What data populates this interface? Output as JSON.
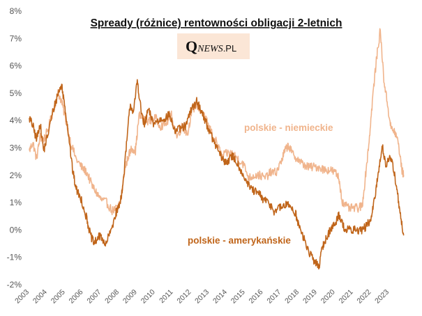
{
  "chart_data": {
    "type": "line",
    "title": "Spready (różnice) rentowności obligacji 2-letnich",
    "logo": {
      "initial": "Q",
      "name": "NEWS",
      "domain": ".PL"
    },
    "xlabel": "",
    "ylabel": "",
    "ylim": [
      -2,
      8
    ],
    "xlim": [
      2003,
      2023.85
    ],
    "y_ticks": [
      "-2%",
      "-1%",
      "0%",
      "1%",
      "2%",
      "3%",
      "4%",
      "5%",
      "6%",
      "7%",
      "8%"
    ],
    "x_ticks": [
      "2003",
      "2004",
      "2005",
      "2006",
      "2007",
      "2008",
      "2009",
      "2010",
      "2011",
      "2012",
      "2013",
      "2014",
      "2015",
      "2016",
      "2017",
      "2018",
      "2019",
      "2020",
      "2021",
      "2022",
      "2023"
    ],
    "grid": false,
    "colors": {
      "niemieckie": "#f0b48c",
      "amerykanskie": "#c0651a",
      "logo_bg": "#fbe6d6"
    },
    "series": [
      {
        "name": "polskie - niemieckie",
        "points": [
          [
            2003.0,
            2.9
          ],
          [
            2003.2,
            3.2
          ],
          [
            2003.4,
            2.6
          ],
          [
            2003.6,
            3.4
          ],
          [
            2003.8,
            3.3
          ],
          [
            2004.0,
            3.6
          ],
          [
            2004.3,
            4.3
          ],
          [
            2004.6,
            5.0
          ],
          [
            2004.8,
            4.7
          ],
          [
            2005.0,
            4.1
          ],
          [
            2005.3,
            3.2
          ],
          [
            2005.6,
            2.6
          ],
          [
            2005.9,
            2.3
          ],
          [
            2006.2,
            2.1
          ],
          [
            2006.5,
            1.6
          ],
          [
            2006.8,
            1.3
          ],
          [
            2007.0,
            1.1
          ],
          [
            2007.3,
            1.0
          ],
          [
            2007.6,
            0.7
          ],
          [
            2007.9,
            0.8
          ],
          [
            2008.1,
            1.1
          ],
          [
            2008.3,
            2.2
          ],
          [
            2008.5,
            2.7
          ],
          [
            2008.7,
            3.0
          ],
          [
            2008.9,
            2.9
          ],
          [
            2009.1,
            4.2
          ],
          [
            2009.4,
            4.0
          ],
          [
            2009.7,
            4.0
          ],
          [
            2010.0,
            4.1
          ],
          [
            2010.3,
            3.8
          ],
          [
            2010.6,
            3.9
          ],
          [
            2010.9,
            4.2
          ],
          [
            2011.2,
            3.4
          ],
          [
            2011.5,
            3.8
          ],
          [
            2011.8,
            3.5
          ],
          [
            2012.0,
            4.3
          ],
          [
            2012.3,
            4.6
          ],
          [
            2012.6,
            4.3
          ],
          [
            2012.9,
            3.9
          ],
          [
            2013.1,
            3.6
          ],
          [
            2013.4,
            3.2
          ],
          [
            2013.7,
            2.7
          ],
          [
            2014.0,
            2.8
          ],
          [
            2014.3,
            2.8
          ],
          [
            2014.6,
            2.6
          ],
          [
            2014.9,
            2.4
          ],
          [
            2015.2,
            1.9
          ],
          [
            2015.5,
            2.0
          ],
          [
            2015.8,
            2.0
          ],
          [
            2016.1,
            1.9
          ],
          [
            2016.4,
            2.1
          ],
          [
            2016.7,
            2.1
          ],
          [
            2017.0,
            2.5
          ],
          [
            2017.2,
            2.9
          ],
          [
            2017.4,
            3.1
          ],
          [
            2017.6,
            2.8
          ],
          [
            2017.9,
            2.6
          ],
          [
            2018.2,
            2.4
          ],
          [
            2018.5,
            2.3
          ],
          [
            2018.8,
            2.3
          ],
          [
            2019.1,
            2.3
          ],
          [
            2019.4,
            2.2
          ],
          [
            2019.7,
            2.2
          ],
          [
            2020.0,
            2.1
          ],
          [
            2020.2,
            1.9
          ],
          [
            2020.4,
            1.0
          ],
          [
            2020.7,
            0.8
          ],
          [
            2021.0,
            0.8
          ],
          [
            2021.3,
            0.8
          ],
          [
            2021.5,
            0.9
          ],
          [
            2021.7,
            2.1
          ],
          [
            2021.9,
            3.4
          ],
          [
            2022.1,
            5.0
          ],
          [
            2022.3,
            6.3
          ],
          [
            2022.5,
            7.3
          ],
          [
            2022.7,
            5.5
          ],
          [
            2022.9,
            4.6
          ],
          [
            2023.1,
            3.7
          ],
          [
            2023.3,
            3.6
          ],
          [
            2023.5,
            3.2
          ],
          [
            2023.7,
            2.2
          ],
          [
            2023.8,
            2.0
          ]
        ]
      },
      {
        "name": "polskie - amerykańskie",
        "points": [
          [
            2003.0,
            4.1
          ],
          [
            2003.2,
            3.8
          ],
          [
            2003.4,
            3.3
          ],
          [
            2003.6,
            3.9
          ],
          [
            2003.8,
            2.9
          ],
          [
            2004.0,
            3.4
          ],
          [
            2004.3,
            4.3
          ],
          [
            2004.6,
            5.0
          ],
          [
            2004.8,
            5.3
          ],
          [
            2005.0,
            4.4
          ],
          [
            2005.2,
            3.4
          ],
          [
            2005.4,
            2.2
          ],
          [
            2005.6,
            1.5
          ],
          [
            2005.9,
            1.1
          ],
          [
            2006.2,
            0.4
          ],
          [
            2006.4,
            -0.2
          ],
          [
            2006.6,
            -0.5
          ],
          [
            2006.8,
            -0.3
          ],
          [
            2007.0,
            -0.2
          ],
          [
            2007.2,
            -0.6
          ],
          [
            2007.5,
            -0.1
          ],
          [
            2007.8,
            0.6
          ],
          [
            2008.0,
            0.9
          ],
          [
            2008.2,
            1.6
          ],
          [
            2008.4,
            3.1
          ],
          [
            2008.6,
            4.6
          ],
          [
            2008.8,
            4.3
          ],
          [
            2009.0,
            5.5
          ],
          [
            2009.2,
            4.4
          ],
          [
            2009.4,
            3.8
          ],
          [
            2009.6,
            4.4
          ],
          [
            2009.9,
            3.9
          ],
          [
            2010.2,
            4.0
          ],
          [
            2010.5,
            4.1
          ],
          [
            2010.8,
            4.2
          ],
          [
            2011.1,
            3.6
          ],
          [
            2011.4,
            3.7
          ],
          [
            2011.7,
            3.8
          ],
          [
            2012.0,
            4.4
          ],
          [
            2012.3,
            4.7
          ],
          [
            2012.6,
            4.3
          ],
          [
            2012.9,
            3.8
          ],
          [
            2013.2,
            3.3
          ],
          [
            2013.5,
            2.9
          ],
          [
            2013.8,
            2.5
          ],
          [
            2014.0,
            2.5
          ],
          [
            2014.3,
            2.7
          ],
          [
            2014.6,
            2.4
          ],
          [
            2014.9,
            2.0
          ],
          [
            2015.2,
            1.6
          ],
          [
            2015.5,
            1.4
          ],
          [
            2015.8,
            1.3
          ],
          [
            2016.0,
            1.1
          ],
          [
            2016.3,
            1.0
          ],
          [
            2016.6,
            0.7
          ],
          [
            2016.9,
            0.8
          ],
          [
            2017.2,
            0.9
          ],
          [
            2017.5,
            0.9
          ],
          [
            2017.8,
            0.6
          ],
          [
            2018.0,
            0.1
          ],
          [
            2018.3,
            -0.4
          ],
          [
            2018.6,
            -0.9
          ],
          [
            2018.9,
            -1.2
          ],
          [
            2019.1,
            -1.3
          ],
          [
            2019.3,
            -0.6
          ],
          [
            2019.5,
            -0.3
          ],
          [
            2019.8,
            0.1
          ],
          [
            2020.0,
            0.2
          ],
          [
            2020.2,
            0.6
          ],
          [
            2020.4,
            0.2
          ],
          [
            2020.6,
            0.0
          ],
          [
            2020.9,
            0.0
          ],
          [
            2021.2,
            0.0
          ],
          [
            2021.5,
            0.0
          ],
          [
            2021.8,
            0.2
          ],
          [
            2022.0,
            0.4
          ],
          [
            2022.2,
            1.2
          ],
          [
            2022.4,
            2.1
          ],
          [
            2022.6,
            3.1
          ],
          [
            2022.8,
            2.4
          ],
          [
            2023.0,
            2.6
          ],
          [
            2023.2,
            2.4
          ],
          [
            2023.4,
            1.6
          ],
          [
            2023.6,
            0.6
          ],
          [
            2023.8,
            -0.2
          ]
        ]
      }
    ]
  }
}
